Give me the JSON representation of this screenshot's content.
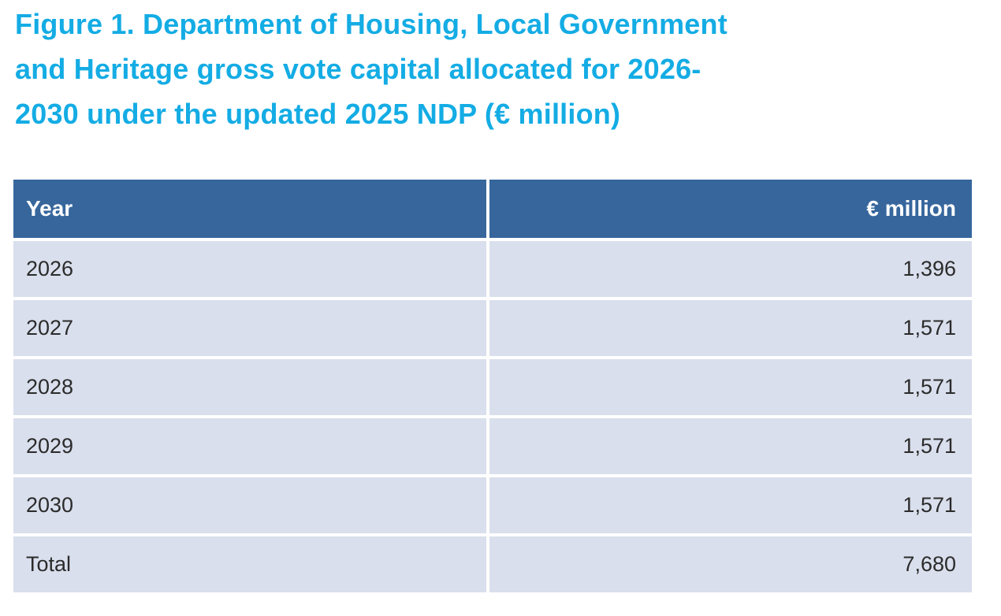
{
  "figure": {
    "title": "Figure 1. Department of Housing, Local Government and Heritage gross vote capital allocated for 2026-2030 under the updated 2025 NDP (€ million)",
    "title_lines": [
      "Figure 1. Department of Housing, Local Government",
      "and Heritage gross vote capital allocated for 2026-",
      "2030 under the updated 2025 NDP (€ million)"
    ]
  },
  "table": {
    "headers": {
      "year": "Year",
      "amount": "€ million"
    },
    "rows": [
      {
        "year": "2026",
        "value": "1,396"
      },
      {
        "year": "2027",
        "value": "1,571"
      },
      {
        "year": "2028",
        "value": "1,571"
      },
      {
        "year": "2029",
        "value": "1,571"
      },
      {
        "year": "2030",
        "value": "1,571"
      },
      {
        "year": "Total",
        "value": "7,680"
      }
    ]
  },
  "colors": {
    "title_text": "#14ACE4",
    "header_bg": "#36669C",
    "header_text": "#FFFFFF",
    "row_bg": "#D9DFEC",
    "row_text": "#2B2B2B",
    "divider": "#FFFFFF"
  },
  "chart_data": {
    "type": "table",
    "title": "Figure 1. Department of Housing, Local Government and Heritage gross vote capital allocated for 2026-2030 under the updated 2025 NDP (€ million)",
    "columns": [
      "Year",
      "€ million"
    ],
    "rows": [
      [
        "2026",
        1396
      ],
      [
        "2027",
        1571
      ],
      [
        "2028",
        1571
      ],
      [
        "2029",
        1571
      ],
      [
        "2030",
        1571
      ],
      [
        "Total",
        7680
      ]
    ],
    "unit": "€ million"
  }
}
